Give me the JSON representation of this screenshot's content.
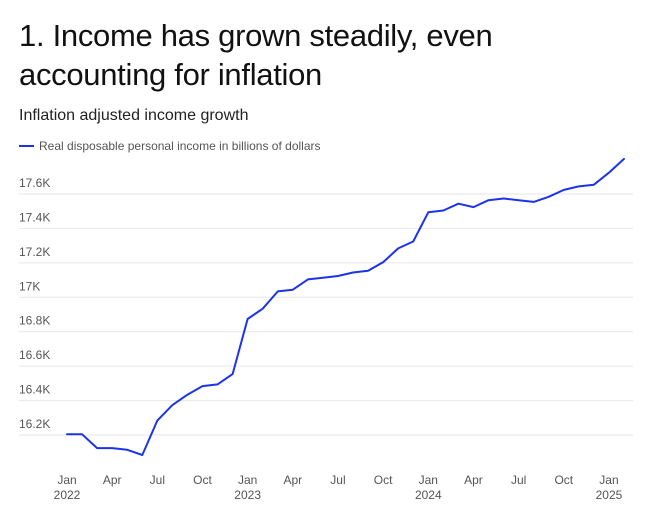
{
  "title": "1. Income has grown steadily, even accounting for inflation",
  "subtitle": "Inflation adjusted income growth",
  "colors": {
    "series": "#1c34e8",
    "grid": "#e6e6e6",
    "text": "#555555"
  },
  "chart_data": {
    "type": "line",
    "title": "1. Income has grown steadily, even accounting for inflation",
    "subtitle": "Inflation adjusted income growth",
    "xlabel": "",
    "ylabel": "",
    "series": [
      {
        "name": "Real disposable personal income in billions of dollars",
        "x": [
          "2022-01",
          "2022-02",
          "2022-03",
          "2022-04",
          "2022-05",
          "2022-06",
          "2022-07",
          "2022-08",
          "2022-09",
          "2022-10",
          "2022-11",
          "2022-12",
          "2023-01",
          "2023-02",
          "2023-03",
          "2023-04",
          "2023-05",
          "2023-06",
          "2023-07",
          "2023-08",
          "2023-09",
          "2023-10",
          "2023-11",
          "2023-12",
          "2024-01",
          "2024-02",
          "2024-03",
          "2024-04",
          "2024-05",
          "2024-06",
          "2024-07",
          "2024-08",
          "2024-09",
          "2024-10",
          "2024-11",
          "2024-12",
          "2025-01",
          "2025-02"
        ],
        "values": [
          16140,
          16140,
          16060,
          16060,
          16050,
          16020,
          16220,
          16310,
          16370,
          16420,
          16430,
          16490,
          16810,
          16870,
          16970,
          16980,
          17040,
          17050,
          17060,
          17080,
          17090,
          17140,
          17220,
          17260,
          17430,
          17440,
          17480,
          17460,
          17500,
          17510,
          17500,
          17490,
          17520,
          17560,
          17580,
          17590,
          17660,
          17740
        ]
      }
    ],
    "yticks": [
      16200,
      16400,
      16600,
      16800,
      17000,
      17200,
      17400,
      17600
    ],
    "ytick_labels": [
      "16.2K",
      "16.4K",
      "16.6K",
      "16.8K",
      "17K",
      "17.2K",
      "17.4K",
      "17.6K"
    ],
    "ylim": [
      15960,
      17800
    ],
    "xticks": [
      {
        "x": "2022-01",
        "label": "Jan",
        "year": "2022"
      },
      {
        "x": "2022-04",
        "label": "Apr",
        "year": ""
      },
      {
        "x": "2022-07",
        "label": "Jul",
        "year": ""
      },
      {
        "x": "2022-10",
        "label": "Oct",
        "year": ""
      },
      {
        "x": "2023-01",
        "label": "Jan",
        "year": "2023"
      },
      {
        "x": "2023-04",
        "label": "Apr",
        "year": ""
      },
      {
        "x": "2023-07",
        "label": "Jul",
        "year": ""
      },
      {
        "x": "2023-10",
        "label": "Oct",
        "year": ""
      },
      {
        "x": "2024-01",
        "label": "Jan",
        "year": "2024"
      },
      {
        "x": "2024-04",
        "label": "Apr",
        "year": ""
      },
      {
        "x": "2024-07",
        "label": "Jul",
        "year": ""
      },
      {
        "x": "2024-10",
        "label": "Oct",
        "year": ""
      },
      {
        "x": "2025-01",
        "label": "Jan",
        "year": "2025"
      }
    ],
    "grid": true,
    "legend": "top-left"
  }
}
